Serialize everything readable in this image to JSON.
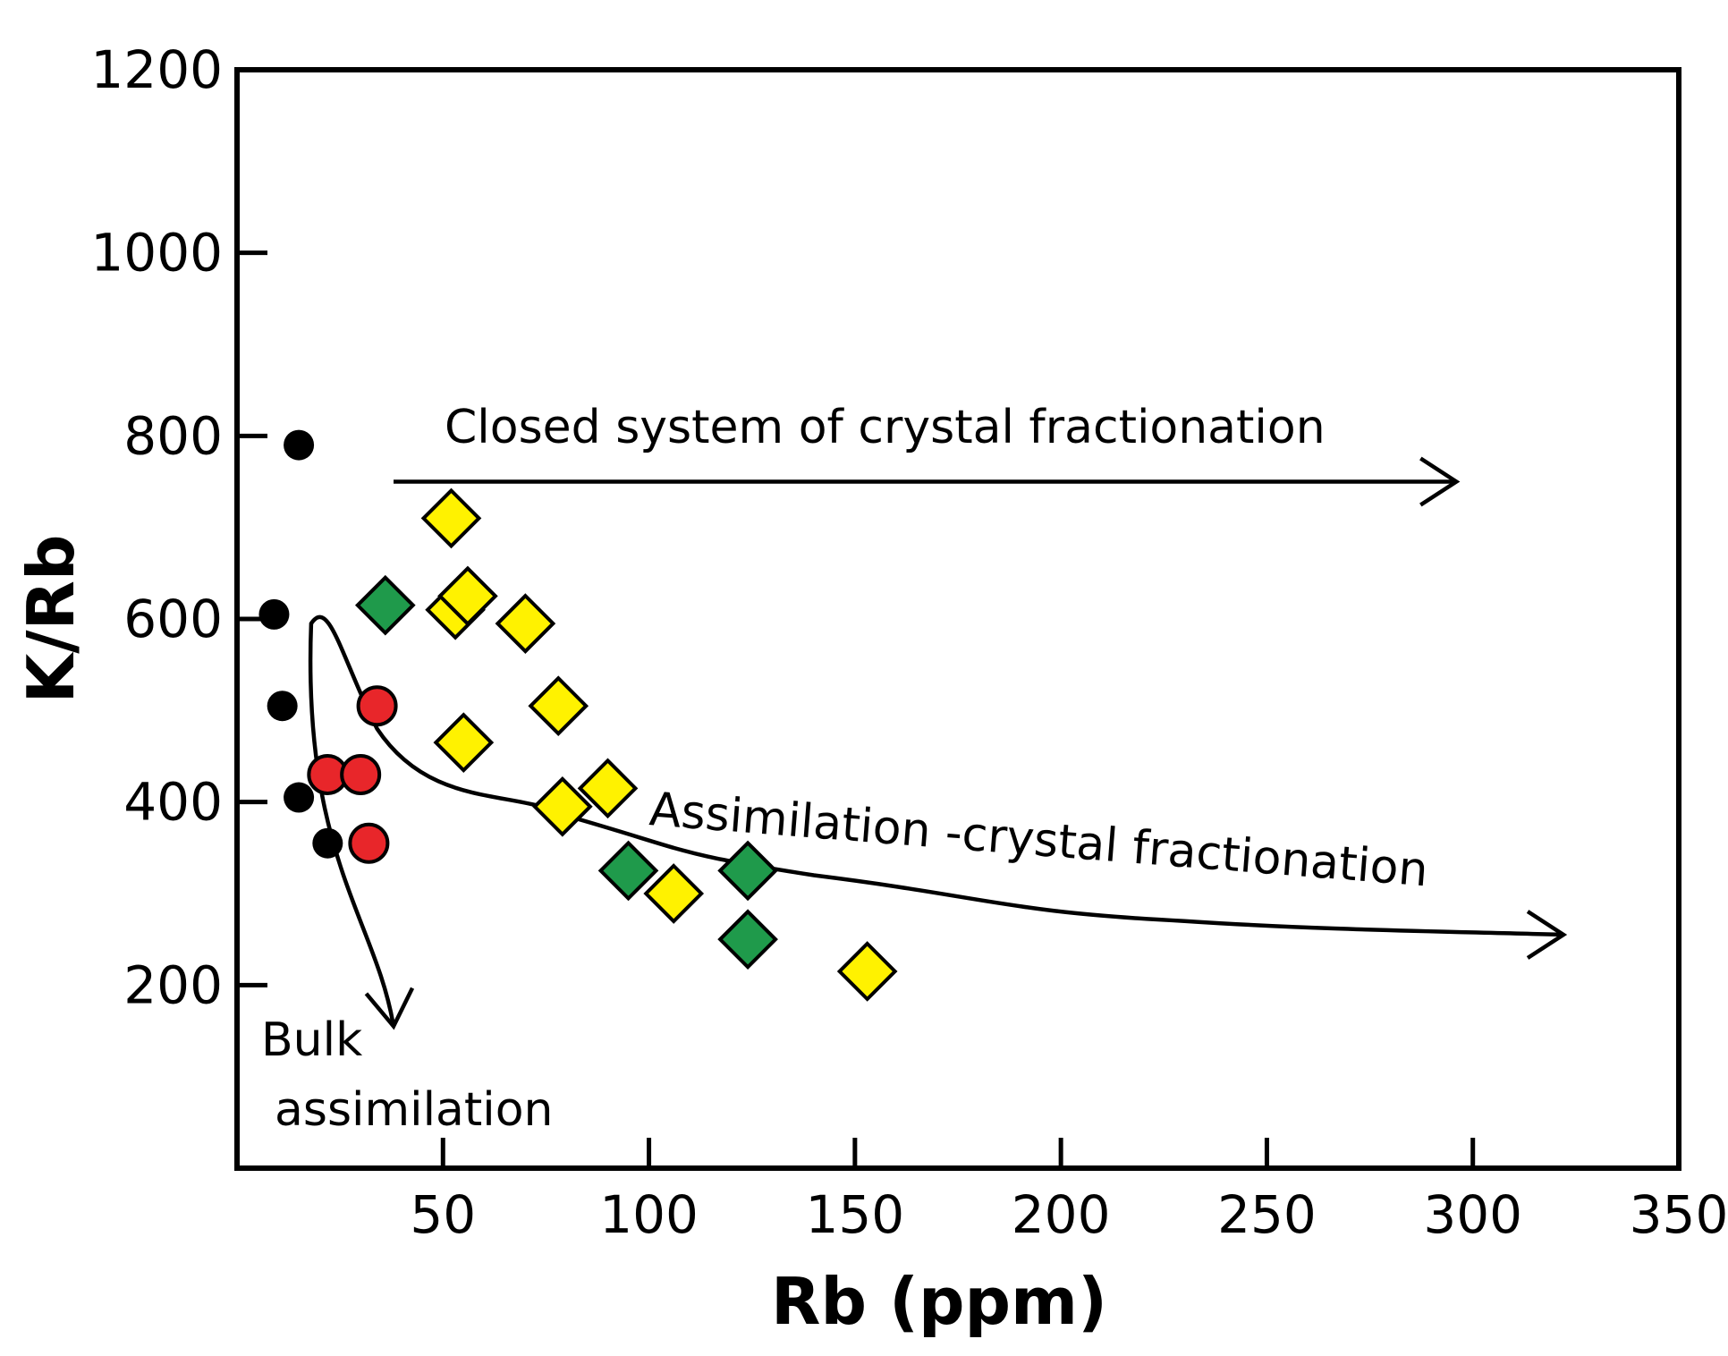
{
  "chart_data": {
    "type": "scatter",
    "xlabel": "Rb (ppm)",
    "ylabel": "K/Rb",
    "xlim": [
      0,
      350
    ],
    "ylim": [
      0,
      1200
    ],
    "xticks": [
      50,
      100,
      150,
      200,
      250,
      300,
      350
    ],
    "yticks": [
      200,
      400,
      600,
      800,
      1000,
      1200
    ],
    "grid": false,
    "series": [
      {
        "name": "black circles",
        "marker": "circle",
        "color": "#000000",
        "points": [
          [
            15,
            790
          ],
          [
            9,
            605
          ],
          [
            11,
            505
          ],
          [
            15,
            405
          ],
          [
            22,
            355
          ]
        ]
      },
      {
        "name": "red circles",
        "marker": "circle",
        "color": "#e8262a",
        "points": [
          [
            34,
            505
          ],
          [
            22,
            430
          ],
          [
            30,
            430
          ],
          [
            32,
            355
          ]
        ]
      },
      {
        "name": "green diamonds",
        "marker": "diamond",
        "color": "#1f9a4b",
        "points": [
          [
            36,
            615
          ],
          [
            95,
            325
          ],
          [
            124,
            325
          ],
          [
            124,
            250
          ]
        ]
      },
      {
        "name": "yellow diamonds",
        "marker": "diamond",
        "color": "#fff200",
        "points": [
          [
            52,
            710
          ],
          [
            53,
            610
          ],
          [
            56,
            625
          ],
          [
            70,
            595
          ],
          [
            78,
            505
          ],
          [
            55,
            465
          ],
          [
            90,
            415
          ],
          [
            79,
            395
          ],
          [
            106,
            300
          ],
          [
            153,
            215
          ]
        ]
      }
    ],
    "annotations": [
      {
        "id": "closed",
        "text": "Closed system of crystal fractionation"
      },
      {
        "id": "afc",
        "text": "Assimilation -crystal fractionation"
      },
      {
        "id": "bulk1",
        "text": "Bulk"
      },
      {
        "id": "bulk2",
        "text": "assimilation"
      }
    ],
    "trend_lines": {
      "closed": [
        [
          38,
          750
        ],
        [
          296,
          750
        ]
      ],
      "afc": [
        [
          34,
          480
        ],
        [
          80,
          385
        ],
        [
          140,
          320
        ],
        [
          230,
          270
        ],
        [
          322,
          255
        ]
      ],
      "bulk_assimilation": [
        [
          19,
          600
        ],
        [
          38,
          155
        ]
      ],
      "curve_apex": [
        [
          18,
          595
        ]
      ]
    }
  }
}
